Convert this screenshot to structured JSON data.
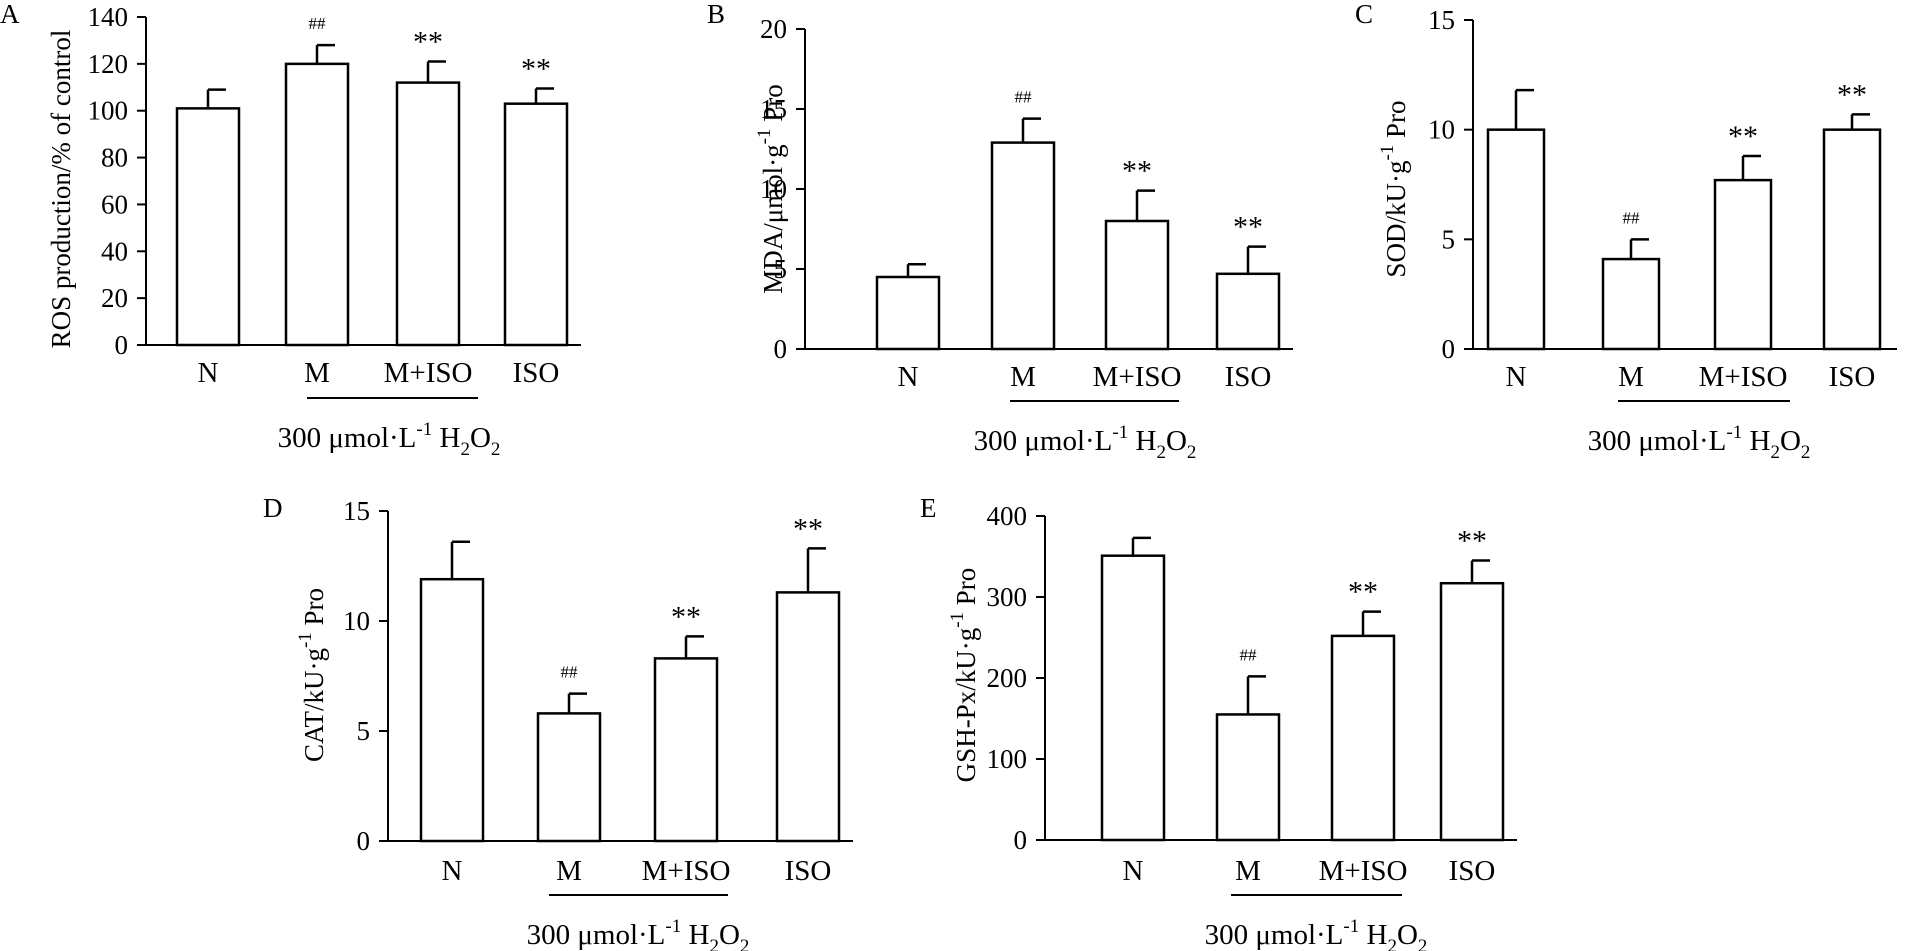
{
  "chart_data": [
    {
      "panel": "A",
      "type": "bar",
      "ylabel": "ROS production/% of control",
      "categories": [
        "N",
        "M",
        "M+ISO",
        "ISO"
      ],
      "values": [
        101,
        120,
        112,
        103
      ],
      "errors": [
        8,
        8,
        9,
        6.5
      ],
      "significance": [
        "",
        "##",
        "**",
        "**"
      ],
      "ylim": [
        0,
        140
      ],
      "yticks": [
        "0",
        "20",
        "40",
        "60",
        "80",
        "100",
        "120",
        "140"
      ],
      "xlabel": {
        "prefix": "300 μmol·L",
        "sup": "-1",
        "mid1": " H",
        "sub1": "2",
        "mid2": "O",
        "sub2": "2"
      },
      "bracket_categories": [
        "M",
        "M+ISO"
      ]
    },
    {
      "panel": "B",
      "type": "bar",
      "ylabel": {
        "prefix": "MDA/μmol·g",
        "sup": "-1",
        "suffix": " Pro"
      },
      "categories": [
        "N",
        "M",
        "M+ISO",
        "ISO"
      ],
      "values": [
        4.5,
        12.9,
        8.0,
        4.7
      ],
      "errors": [
        0.8,
        1.5,
        1.9,
        1.7
      ],
      "significance": [
        "",
        "##",
        "**",
        "**"
      ],
      "ylim": [
        0,
        20
      ],
      "yticks": [
        "0",
        "5",
        "10",
        "15",
        "20"
      ],
      "xlabel": {
        "prefix": "300 μmol·L",
        "sup": "-1",
        "mid1": " H",
        "sub1": "2",
        "mid2": "O",
        "sub2": "2"
      },
      "bracket_categories": [
        "M",
        "M+ISO"
      ]
    },
    {
      "panel": "C",
      "type": "bar",
      "ylabel": {
        "prefix": "SOD/kU·g",
        "sup": "-1",
        "suffix": " Pro"
      },
      "categories": [
        "N",
        "M",
        "M+ISO",
        "ISO"
      ],
      "values": [
        10.0,
        4.1,
        7.7,
        10.0
      ],
      "errors": [
        1.8,
        0.9,
        1.1,
        0.7
      ],
      "significance": [
        "",
        "##",
        "**",
        "**"
      ],
      "ylim": [
        0,
        15
      ],
      "yticks": [
        "0",
        "5",
        "10",
        "15"
      ],
      "xlabel": {
        "prefix": "300 μmol·L",
        "sup": "-1",
        "mid1": " H",
        "sub1": "2",
        "mid2": "O",
        "sub2": "2"
      },
      "bracket_categories": [
        "M",
        "M+ISO"
      ]
    },
    {
      "panel": "D",
      "type": "bar",
      "ylabel": {
        "prefix": "CAT/kU·g",
        "sup": "-1",
        "suffix": " Pro"
      },
      "categories": [
        "N",
        "M",
        "M+ISO",
        "ISO"
      ],
      "values": [
        11.9,
        5.8,
        8.3,
        11.3
      ],
      "errors": [
        1.7,
        0.9,
        1.0,
        2.0
      ],
      "significance": [
        "",
        "##",
        "**",
        "**"
      ],
      "ylim": [
        0,
        15
      ],
      "yticks": [
        "0",
        "5",
        "10",
        "15"
      ],
      "xlabel": {
        "prefix": "300 μmol·L",
        "sup": "-1",
        "mid1": " H",
        "sub1": "2",
        "mid2": "O",
        "sub2": "2"
      },
      "bracket_categories": [
        "M",
        "M+ISO"
      ]
    },
    {
      "panel": "E",
      "type": "bar",
      "ylabel": {
        "prefix": "GSH-Px/kU·g",
        "sup": "-1",
        "suffix": " Pro"
      },
      "categories": [
        "N",
        "M",
        "M+ISO",
        "ISO"
      ],
      "values": [
        351,
        155,
        252,
        317
      ],
      "errors": [
        22,
        47,
        30,
        28
      ],
      "significance": [
        "",
        "##",
        "**",
        "**"
      ],
      "ylim": [
        0,
        400
      ],
      "yticks": [
        "0",
        "100",
        "200",
        "300",
        "400"
      ],
      "xlabel": {
        "prefix": "300 μmol·L",
        "sup": "-1",
        "mid1": " H",
        "sub1": "2",
        "mid2": "O",
        "sub2": "2"
      },
      "bracket_categories": [
        "M",
        "M+ISO"
      ]
    }
  ]
}
